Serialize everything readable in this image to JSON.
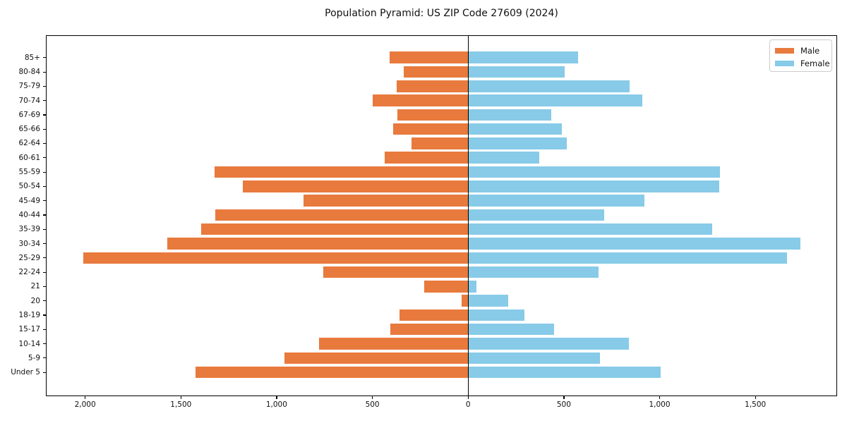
{
  "title": "Population Pyramid: US ZIP Code 27609 (2024)",
  "legend": {
    "male_label": "Male",
    "female_label": "Female",
    "position": "upper right"
  },
  "colors": {
    "male": "#e87a3d",
    "female": "#87cbe8",
    "axis": "#000000",
    "background": "#ffffff"
  },
  "chart_data": {
    "type": "bar",
    "variant": "population-pyramid",
    "title": "Population Pyramid: US ZIP Code 27609 (2024)",
    "xlabel": "",
    "ylabel": "",
    "grid": false,
    "legend_position": "upper right",
    "categories_top_to_bottom": [
      "85+",
      "80-84",
      "75-79",
      "70-74",
      "67-69",
      "65-66",
      "62-64",
      "60-61",
      "55-59",
      "50-54",
      "45-49",
      "40-44",
      "35-39",
      "30-34",
      "25-29",
      "22-24",
      "21",
      "20",
      "18-19",
      "15-17",
      "10-14",
      "5-9",
      "Under 5"
    ],
    "series": [
      {
        "name": "Male",
        "side": "left",
        "values": [
          410,
          335,
          375,
          500,
          370,
          390,
          295,
          435,
          1325,
          1175,
          860,
          1320,
          1395,
          1570,
          2010,
          755,
          230,
          35,
          360,
          405,
          780,
          960,
          1425
        ]
      },
      {
        "name": "Female",
        "side": "right",
        "values": [
          575,
          505,
          845,
          910,
          435,
          490,
          515,
          370,
          1315,
          1310,
          920,
          710,
          1275,
          1735,
          1665,
          680,
          45,
          210,
          295,
          450,
          840,
          690,
          1005
        ]
      }
    ],
    "xlim": [
      -2205,
      1927
    ],
    "x_ticks": [
      {
        "value": -2000,
        "label": "2,000"
      },
      {
        "value": -1500,
        "label": "1,500"
      },
      {
        "value": -1000,
        "label": "1,000"
      },
      {
        "value": -500,
        "label": "500"
      },
      {
        "value": 0,
        "label": "0"
      },
      {
        "value": 500,
        "label": "500"
      },
      {
        "value": 1000,
        "label": "1,000"
      },
      {
        "value": 1500,
        "label": "1,500"
      }
    ]
  }
}
